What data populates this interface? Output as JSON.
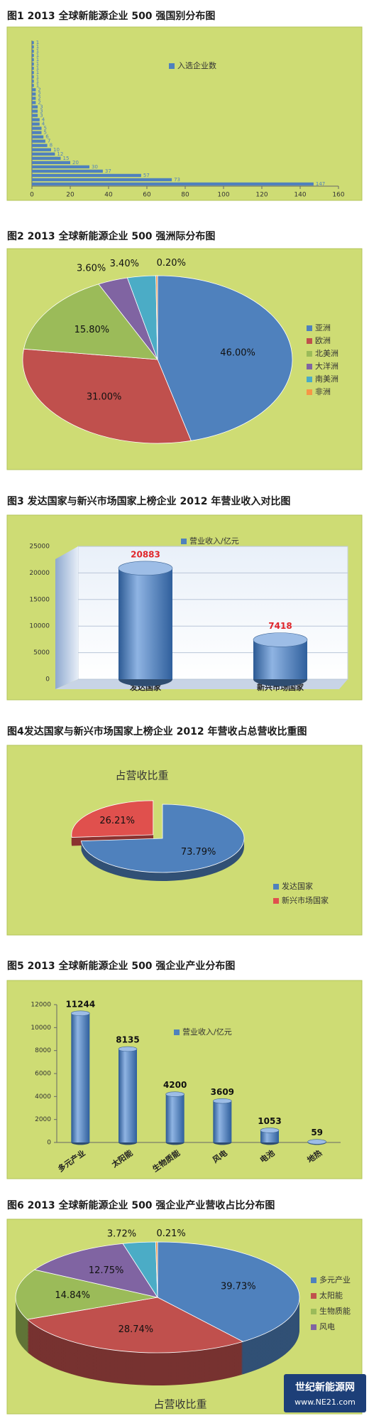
{
  "watermark": {
    "name": "世纪新能源网",
    "url": "www.NE21.com"
  },
  "chart_data": [
    {
      "type": "bar",
      "orientation": "horizontal",
      "title": "图1 2013 全球新能源企业 500 强国别分布图",
      "categories": [
        null,
        null,
        null,
        null,
        null,
        null,
        null,
        null,
        null,
        null,
        null,
        null,
        null,
        null,
        null,
        null,
        null,
        null,
        null,
        null,
        null,
        null,
        null,
        null,
        null,
        null,
        null,
        null,
        null,
        null,
        null,
        null,
        null,
        null
      ],
      "series": [
        {
          "name": "入选企业数",
          "color": "#4f81bd",
          "values": [
            1,
            1,
            1,
            1,
            1,
            1,
            1,
            1,
            1,
            1,
            1,
            2,
            2,
            2,
            2,
            3,
            3,
            3,
            4,
            4,
            5,
            5,
            6,
            7,
            8,
            10,
            12,
            15,
            20,
            30,
            37,
            57,
            73,
            147
          ]
        }
      ],
      "xlim": [
        0,
        160
      ],
      "xticks": [
        0,
        20,
        40,
        60,
        80,
        100,
        120,
        140,
        160
      ]
    },
    {
      "type": "pie",
      "title": "图2 2013 全球新能源企业 500 强洲际分布图",
      "categories": [
        "亚洲",
        "欧洲",
        "北美洲",
        "大洋洲",
        "南美洲",
        "非洲"
      ],
      "values": [
        46.0,
        31.0,
        15.8,
        3.6,
        3.4,
        0.2
      ],
      "value_labels": [
        "46.00%",
        "31.00%",
        "15.80%",
        "3.60%",
        "3.40%",
        "0.20%"
      ],
      "colors": [
        "#4f81bd",
        "#c0504d",
        "#9bbb59",
        "#8064a2",
        "#4bacc6",
        "#f79646"
      ]
    },
    {
      "type": "bar",
      "title": "图3 发达国家与新兴市场国家上榜企业 2012 年营业收入对比图",
      "categories": [
        "发达国家",
        "新兴市场国家"
      ],
      "series": [
        {
          "name": "营业收入/亿元",
          "color": "#4f81bd",
          "values": [
            20883,
            7418
          ]
        }
      ],
      "ylim": [
        0,
        25000
      ],
      "yticks": [
        0,
        5000,
        10000,
        15000,
        20000,
        25000
      ],
      "grid": true,
      "value_label_color": "#e0262b"
    },
    {
      "type": "pie",
      "3d": true,
      "title": "图4发达国家与新兴市场国家上榜企业 2012 年营收占总营收比重图",
      "caption": "占营收比重",
      "categories": [
        "发达国家",
        "新兴市场国家"
      ],
      "values": [
        73.79,
        26.21
      ],
      "value_labels": [
        "73.79%",
        "26.21%"
      ],
      "colors": [
        "#4f81bd",
        "#e0504d"
      ],
      "explode": [
        false,
        true
      ]
    },
    {
      "type": "bar",
      "title": "图5 2013 全球新能源企业 500 强企业产业分布图",
      "categories": [
        "多元产业",
        "太阳能",
        "生物质能",
        "风电",
        "电池",
        "地热"
      ],
      "series": [
        {
          "name": "营业收入/亿元",
          "color": "#4f81bd",
          "values": [
            11244,
            8135,
            4200,
            3609,
            1053,
            59
          ]
        }
      ],
      "ylim": [
        0,
        12000
      ],
      "yticks": [
        0,
        2000,
        4000,
        6000,
        8000,
        10000,
        12000
      ],
      "grid": false,
      "value_label_color": "#111111"
    },
    {
      "type": "pie",
      "3d": true,
      "title": "图6 2013 全球新能源企业 500 强企业产业营收占比分布图",
      "caption": "占营收比重",
      "categories": [
        "多元产业",
        "太阳能",
        "生物质能",
        "风电",
        null,
        null
      ],
      "values": [
        39.73,
        28.74,
        14.84,
        12.75,
        3.72,
        0.21
      ],
      "value_labels": [
        "39.73%",
        "28.74%",
        "14.84%",
        "12.75%",
        "3.72%",
        "0.21%"
      ],
      "colors": [
        "#4f81bd",
        "#c0504d",
        "#9bbb59",
        "#8064a2",
        "#4bacc6",
        "#f79646"
      ]
    }
  ]
}
